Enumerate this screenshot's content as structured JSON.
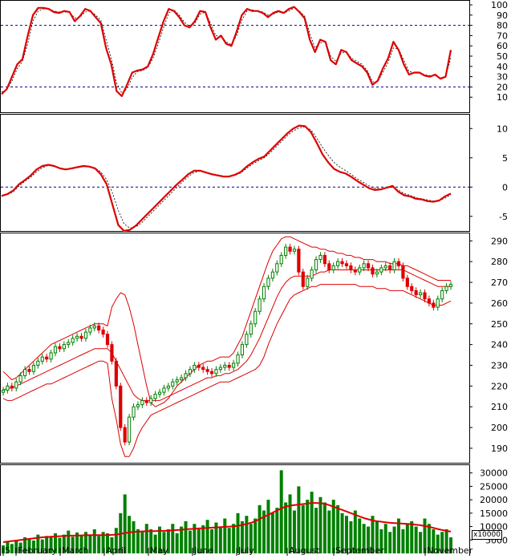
{
  "chart_data": [
    {
      "type": "line",
      "panel": "oscillator",
      "ylim": [
        0,
        100
      ],
      "yticks": [
        10,
        20,
        30,
        40,
        50,
        60,
        70,
        80,
        90,
        100
      ],
      "ref_lines": [
        20,
        80
      ],
      "colors": {
        "main": "#dd0000",
        "signal": "#000000",
        "ref": "#000080"
      },
      "series": [
        {
          "values": [
            13,
            18,
            30,
            42,
            47,
            70,
            90,
            97,
            97,
            96,
            93,
            92,
            94,
            93,
            84,
            89,
            96,
            94,
            88,
            82,
            58,
            42,
            16,
            11,
            22,
            34,
            36,
            37,
            40,
            52,
            68,
            84,
            96,
            94,
            88,
            80,
            78,
            84,
            94,
            93,
            78,
            66,
            70,
            62,
            60,
            74,
            90,
            96,
            94,
            94,
            92,
            88,
            92,
            94,
            92,
            96,
            98,
            93,
            87,
            66,
            54,
            66,
            64,
            46,
            42,
            56,
            54,
            46,
            43,
            40,
            34,
            22,
            26,
            38,
            48,
            64,
            56,
            42,
            32,
            34,
            34,
            31,
            30,
            32,
            28,
            30,
            56
          ]
        },
        {
          "values": [
            15,
            17,
            26,
            38,
            45,
            62,
            84,
            94,
            96,
            96,
            94,
            93,
            93,
            93,
            87,
            88,
            93,
            94,
            90,
            85,
            66,
            48,
            24,
            14,
            18,
            29,
            35,
            36,
            39,
            48,
            62,
            78,
            92,
            95,
            90,
            83,
            79,
            82,
            91,
            93,
            82,
            70,
            69,
            64,
            61,
            70,
            85,
            94,
            95,
            94,
            93,
            90,
            91,
            93,
            92,
            94,
            97,
            94,
            89,
            72,
            58,
            63,
            64,
            50,
            45,
            53,
            54,
            48,
            45,
            42,
            36,
            25,
            25,
            34,
            44,
            58,
            57,
            46,
            35,
            34,
            34,
            32,
            31,
            31,
            29,
            30,
            48
          ]
        }
      ]
    },
    {
      "type": "line",
      "panel": "momentum",
      "ylim": [
        -7.5,
        12.5
      ],
      "yticks": [
        -5,
        0,
        5,
        10
      ],
      "ref_lines": [
        0
      ],
      "colors": {
        "main": "#dd0000",
        "signal": "#000000",
        "ref": "#000080"
      },
      "series": [
        {
          "values": [
            -1.5,
            -1.2,
            -0.6,
            0.5,
            1.2,
            2,
            3,
            3.6,
            3.8,
            3.6,
            3.2,
            3,
            3.2,
            3.4,
            3.6,
            3.5,
            3.2,
            2.2,
            0.5,
            -3,
            -6.5,
            -7.5,
            -7.3,
            -6.6,
            -5.6,
            -4.6,
            -3.6,
            -2.6,
            -1.6,
            -0.6,
            0.4,
            1.3,
            2.2,
            2.8,
            2.8,
            2.5,
            2.2,
            2,
            1.8,
            1.8,
            2.1,
            2.6,
            3.5,
            4.2,
            4.8,
            5.2,
            6.2,
            7.2,
            8.2,
            9.2,
            10,
            10.5,
            10.4,
            9.4,
            7.6,
            5.6,
            4.2,
            3.1,
            2.6,
            2.3,
            1.7,
            1,
            0.4,
            -0.2,
            -0.5,
            -0.4,
            -0.1,
            0.2,
            -0.8,
            -1.4,
            -1.6,
            -2,
            -2.1,
            -2.4,
            -2.5,
            -2.3,
            -1.6,
            -1.1
          ]
        },
        {
          "values": [
            -1.6,
            -1.3,
            -0.8,
            0.2,
            1,
            1.7,
            2.6,
            3.3,
            3.7,
            3.6,
            3.3,
            3.1,
            3.1,
            3.3,
            3.5,
            3.5,
            3.3,
            2.6,
            1.3,
            -1,
            -4,
            -6.3,
            -7,
            -6.8,
            -6.1,
            -5.1,
            -4.1,
            -3.1,
            -2.1,
            -1.1,
            -0.1,
            0.9,
            1.8,
            2.5,
            2.7,
            2.6,
            2.3,
            2.1,
            1.9,
            1.8,
            2,
            2.4,
            3.2,
            3.9,
            4.5,
            5,
            5.8,
            6.8,
            7.8,
            8.8,
            9.6,
            10.1,
            10.3,
            9.8,
            8.4,
            6.8,
            5.4,
            4.2,
            3.4,
            2.8,
            2.1,
            1.4,
            0.8,
            0.2,
            -0.2,
            -0.3,
            -0.2,
            0,
            -0.5,
            -1.1,
            -1.4,
            -1.8,
            -2,
            -2.2,
            -2.4,
            -2.3,
            -1.9,
            -1.3
          ]
        }
      ]
    },
    {
      "type": "candlestick",
      "panel": "price",
      "ylim": [
        183,
        294
      ],
      "yticks": [
        190,
        200,
        210,
        220,
        230,
        240,
        250,
        260,
        270,
        280,
        290
      ],
      "colors": {
        "up": "#008000",
        "down": "#dd0000",
        "band": "#dd0000"
      },
      "close": [
        218,
        220,
        219,
        222,
        225,
        228,
        227,
        230,
        232,
        234,
        233,
        236,
        239,
        238,
        240,
        241,
        243,
        244,
        243,
        246,
        248,
        249,
        247,
        245,
        240,
        232,
        220,
        200,
        193,
        205,
        210,
        211,
        213,
        212,
        214,
        216,
        217,
        219,
        220,
        222,
        223,
        224,
        226,
        228,
        230,
        229,
        228,
        227,
        226,
        228,
        229,
        230,
        229,
        231,
        235,
        240,
        245,
        250,
        256,
        262,
        268,
        272,
        275,
        279,
        283,
        287,
        285,
        286,
        275,
        268,
        272,
        276,
        281,
        283,
        279,
        276,
        278,
        280,
        279,
        278,
        276,
        275,
        277,
        279,
        277,
        274,
        275,
        277,
        278,
        276,
        280,
        278,
        272,
        268,
        266,
        264,
        265,
        262,
        260,
        258,
        262,
        266,
        268,
        269
      ],
      "bands": {
        "upper": [
          227,
          225,
          223,
          224,
          226,
          228,
          230,
          232,
          234,
          236,
          238,
          240,
          241,
          242,
          243,
          244,
          245,
          246,
          247,
          248,
          249,
          250,
          250,
          250,
          249,
          258,
          262,
          265,
          264,
          258,
          250,
          240,
          230,
          220,
          212,
          210,
          211,
          212,
          214,
          217,
          220,
          222,
          224,
          226,
          228,
          230,
          231,
          232,
          232,
          233,
          234,
          234,
          234,
          236,
          240,
          244,
          250,
          256,
          262,
          268,
          274,
          280,
          285,
          288,
          291,
          292,
          292,
          291,
          290,
          289,
          288,
          287,
          287,
          286,
          286,
          285,
          285,
          284,
          284,
          283,
          283,
          282,
          282,
          281,
          281,
          281,
          280,
          280,
          280,
          279,
          279,
          279,
          278,
          278,
          277,
          276,
          275,
          274,
          273,
          272,
          271,
          271,
          271,
          271
        ],
        "middle": [
          218,
          219,
          219,
          220,
          221,
          222,
          223,
          224,
          225,
          226,
          227,
          228,
          229,
          230,
          231,
          232,
          233,
          234,
          235,
          236,
          237,
          238,
          238,
          238,
          238,
          236,
          232,
          228,
          224,
          220,
          216,
          214,
          213,
          213,
          213,
          213,
          213,
          214,
          215,
          216,
          217,
          218,
          219,
          220,
          221,
          222,
          223,
          224,
          224,
          225,
          225,
          226,
          226,
          227,
          228,
          230,
          232,
          235,
          239,
          243,
          248,
          253,
          258,
          263,
          267,
          270,
          272,
          273,
          273,
          273,
          273,
          273,
          274,
          275,
          275,
          276,
          276,
          276,
          276,
          276,
          276,
          276,
          276,
          276,
          276,
          276,
          276,
          276,
          276,
          276,
          276,
          276,
          276,
          275,
          274,
          273,
          272,
          271,
          270,
          269,
          268,
          268,
          268,
          268
        ],
        "lower": [
          214,
          213,
          213,
          214,
          215,
          216,
          217,
          218,
          219,
          220,
          221,
          221,
          222,
          223,
          224,
          225,
          226,
          227,
          228,
          229,
          230,
          231,
          232,
          232,
          231,
          214,
          204,
          192,
          186,
          186,
          190,
          196,
          200,
          203,
          206,
          207,
          208,
          209,
          210,
          211,
          212,
          213,
          214,
          215,
          216,
          217,
          218,
          219,
          220,
          221,
          222,
          222,
          222,
          223,
          224,
          225,
          226,
          227,
          228,
          230,
          234,
          240,
          245,
          250,
          254,
          258,
          262,
          264,
          265,
          266,
          267,
          268,
          268,
          269,
          269,
          269,
          269,
          269,
          269,
          269,
          269,
          269,
          268,
          268,
          268,
          268,
          267,
          267,
          267,
          266,
          266,
          266,
          266,
          265,
          264,
          263,
          262,
          261,
          260,
          259,
          259,
          259,
          260,
          261
        ]
      }
    },
    {
      "type": "bar",
      "panel": "volume",
      "ylim": [
        0,
        32000
      ],
      "yticks": [
        5000,
        10000,
        15000,
        20000,
        25000,
        30000
      ],
      "unit": "x10000",
      "colors": {
        "bar": "#008000",
        "average": "#dd0000"
      },
      "values": [
        3000,
        4500,
        3500,
        5000,
        4000,
        6000,
        5500,
        4800,
        7000,
        5200,
        6500,
        6000,
        7500,
        5800,
        7000,
        8500,
        6200,
        7800,
        6500,
        8000,
        7000,
        9000,
        6500,
        8000,
        7500,
        6000,
        9500,
        15000,
        22000,
        14000,
        12000,
        9000,
        8000,
        11000,
        9000,
        7000,
        10000,
        8000,
        9000,
        11000,
        7500,
        10000,
        12000,
        8500,
        11000,
        9000,
        10500,
        12500,
        9000,
        11500,
        10000,
        13000,
        9500,
        11000,
        15000,
        12000,
        14000,
        11000,
        13000,
        18000,
        16000,
        20000,
        15000,
        17000,
        31000,
        19000,
        22000,
        16000,
        25000,
        18000,
        20000,
        23000,
        17000,
        21000,
        19000,
        16000,
        20000,
        18000,
        15000,
        14000,
        12000,
        16000,
        13000,
        11000,
        10000,
        14000,
        12000,
        9000,
        11000,
        8000,
        10000,
        13000,
        9000,
        11000,
        12000,
        10000,
        8000,
        13000,
        11000,
        9000,
        7000,
        8000,
        9000,
        6000
      ],
      "average": [
        4200,
        4400,
        4600,
        4800,
        5000,
        5200,
        5400,
        5600,
        5800,
        6000,
        6100,
        6200,
        6300,
        6400,
        6500,
        6600,
        6600,
        6700,
        6700,
        6800,
        6800,
        6800,
        6800,
        6800,
        6800,
        6900,
        7000,
        7300,
        7600,
        7800,
        8000,
        8100,
        8200,
        8300,
        8300,
        8300,
        8400,
        8400,
        8500,
        8600,
        8700,
        8800,
        9000,
        9100,
        9200,
        9300,
        9400,
        9500,
        9600,
        9700,
        9800,
        9900,
        10000,
        10100,
        10300,
        10600,
        11000,
        11400,
        12000,
        12800,
        13600,
        14400,
        15200,
        16000,
        16800,
        17400,
        17800,
        18000,
        18200,
        18400,
        18600,
        18800,
        18800,
        18700,
        18500,
        18000,
        17400,
        16800,
        16200,
        15600,
        15000,
        14400,
        13800,
        13200,
        12700,
        12300,
        12000,
        11800,
        11600,
        11400,
        11300,
        11200,
        11100,
        11000,
        10900,
        10700,
        10500,
        10200,
        9900,
        9500,
        9100,
        8700,
        8400,
        8100
      ]
    }
  ],
  "x_axis": {
    "labels": [
      "5",
      "February",
      "March",
      "April",
      "May",
      "June",
      "July",
      "August",
      "September",
      "November"
    ]
  }
}
